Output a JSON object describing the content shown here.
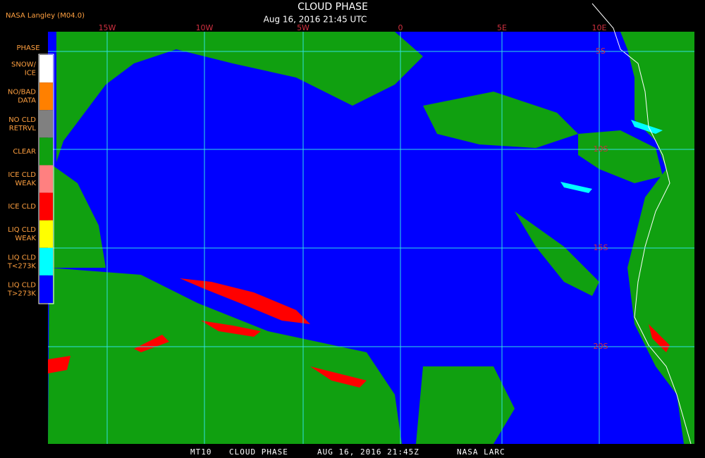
{
  "header": {
    "source": "NASA Langley (M04.0)",
    "title": "CLOUD PHASE",
    "subtitle": "Aug 16, 2016 21:45 UTC"
  },
  "legend": {
    "title": "PHASE",
    "items": [
      {
        "lines": [
          "SNOW/",
          "ICE"
        ],
        "color": "#ffffff"
      },
      {
        "lines": [
          "NO/BAD",
          "DATA"
        ],
        "color": "#ff8000"
      },
      {
        "lines": [
          "NO CLD",
          "RETRVL"
        ],
        "color": "#808080"
      },
      {
        "lines": [
          "CLEAR"
        ],
        "color": "#10a010"
      },
      {
        "lines": [
          "ICE CLD",
          "WEAK"
        ],
        "color": "#ff8080"
      },
      {
        "lines": [
          "ICE CLD"
        ],
        "color": "#ff0000"
      },
      {
        "lines": [
          "LIQ CLD",
          "WEAK"
        ],
        "color": "#ffff00"
      },
      {
        "lines": [
          "LIQ CLD",
          "T<273K"
        ],
        "color": "#00ffff"
      },
      {
        "lines": [
          "LIQ CLD",
          "T>273K"
        ],
        "color": "#0000ff"
      }
    ]
  },
  "map": {
    "lon_labels": [
      "15W",
      "10W",
      "5W",
      "0",
      "5E",
      "10E"
    ],
    "lat_labels": [
      "5S",
      "10S",
      "15S",
      "20S"
    ]
  },
  "footer": {
    "items": [
      "MT10",
      "CLOUD PHASE",
      "AUG 16, 2016 21:45Z",
      "NASA LARC"
    ]
  }
}
